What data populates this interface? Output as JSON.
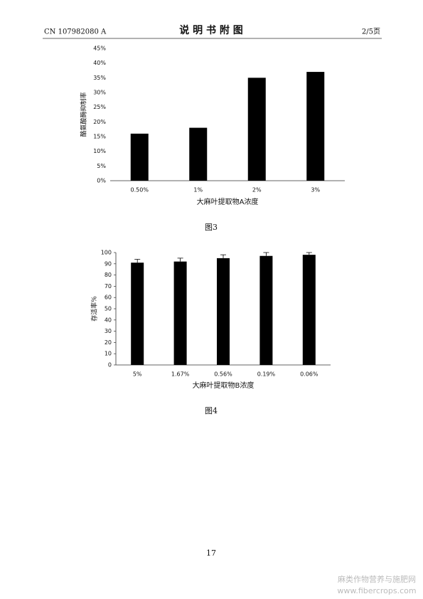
{
  "header": {
    "doc_number": "CN 107982080 A",
    "title": "说 明 书 附 图",
    "page_of": "2/5页"
  },
  "chart_data": [
    {
      "type": "bar",
      "caption": "图3",
      "x_label": "大麻叶提取物A浓度",
      "y_label": "酪氨酸酶抑制率",
      "categories": [
        "0.50%",
        "1%",
        "2%",
        "3%"
      ],
      "values": [
        16,
        18,
        35,
        37
      ],
      "color": "#000000",
      "ylim": [
        0,
        45
      ],
      "yticks": [
        {
          "value": 0,
          "label": "0%"
        },
        {
          "value": 5,
          "label": "5%"
        },
        {
          "value": 10,
          "label": "10%"
        },
        {
          "value": 15,
          "label": "15%"
        },
        {
          "value": 20,
          "label": "20%"
        },
        {
          "value": 25,
          "label": "25%"
        },
        {
          "value": 30,
          "label": "30%"
        },
        {
          "value": 35,
          "label": "35%"
        },
        {
          "value": 40,
          "label": "40%"
        },
        {
          "value": 45,
          "label": "45%"
        }
      ],
      "grid": false,
      "y_axis_line": false
    },
    {
      "type": "bar",
      "caption": "图4",
      "x_label": "大麻叶提取物B浓度",
      "y_label": "存活率%",
      "categories": [
        "5%",
        "1.67%",
        "0.56%",
        "0.19%",
        "0.06%"
      ],
      "values": [
        91,
        92,
        95,
        97,
        98
      ],
      "errors": [
        3,
        3,
        3,
        3,
        2
      ],
      "color": "#000000",
      "ylim": [
        0,
        100
      ],
      "yticks": [
        0,
        10,
        20,
        30,
        40,
        50,
        60,
        70,
        80,
        90,
        100
      ],
      "grid": false,
      "y_axis_line": true
    }
  ],
  "footer": {
    "page_number": "17",
    "watermark_name": "麻类作物营养与施肥网",
    "watermark_url": "www.fibercrops.com"
  }
}
